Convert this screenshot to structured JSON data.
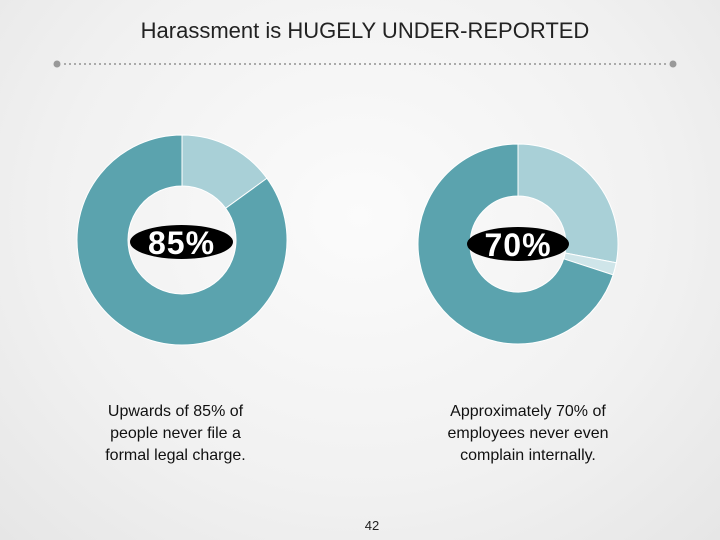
{
  "slide": {
    "title": "Harassment is HUGELY UNDER-REPORTED",
    "page_number": "42"
  },
  "chart_data": [
    {
      "type": "pie",
      "title": "",
      "center_label": "85%",
      "caption": "Upwards of 85% of people never file a formal legal charge.",
      "slices": [
        {
          "label": "",
          "value": 85,
          "color": "#5ba3ae"
        },
        {
          "label": "",
          "value": 15,
          "color": "#a9d0d7"
        }
      ]
    },
    {
      "type": "pie",
      "title": "",
      "center_label": "70%",
      "caption": "Approximately 70% of employees never even complain internally.",
      "slices": [
        {
          "label": "",
          "value": 70,
          "color": "#5ba3ae"
        },
        {
          "label": "",
          "value": 28,
          "color": "#a9d0d7"
        },
        {
          "label": "",
          "value": 2,
          "color": "#cfe5e9"
        }
      ]
    }
  ]
}
